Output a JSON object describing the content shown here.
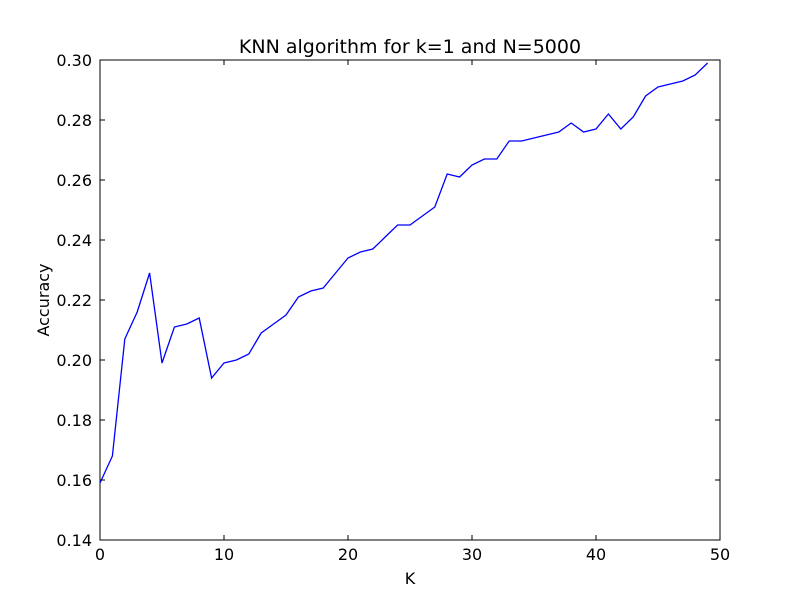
{
  "chart_data": {
    "type": "line",
    "title": "KNN algorithm for k=1 and N=5000",
    "xlabel": "K",
    "ylabel": "Accuracy",
    "xlim": [
      0,
      50
    ],
    "ylim": [
      0.14,
      0.3
    ],
    "xticks": [
      "0",
      "10",
      "20",
      "30",
      "40",
      "50"
    ],
    "yticks": [
      "0.14",
      "0.16",
      "0.18",
      "0.20",
      "0.22",
      "0.24",
      "0.26",
      "0.28",
      "0.30"
    ],
    "grid": false,
    "line_color": "#0000ff",
    "series": [
      {
        "x": [
          0,
          1,
          2,
          3,
          4,
          5,
          6,
          7,
          8,
          9,
          10,
          11,
          12,
          13,
          14,
          15,
          16,
          17,
          18,
          19,
          20,
          21,
          22,
          23,
          24,
          25,
          26,
          27,
          28,
          29,
          30,
          31,
          32,
          33,
          34,
          35,
          36,
          37,
          38,
          39,
          40,
          41,
          42,
          43,
          44,
          45,
          46,
          47,
          48,
          49
        ],
        "values": [
          0.159,
          0.168,
          0.207,
          0.216,
          0.229,
          0.199,
          0.211,
          0.212,
          0.214,
          0.194,
          0.199,
          0.2,
          0.202,
          0.209,
          0.212,
          0.215,
          0.221,
          0.223,
          0.224,
          0.229,
          0.234,
          0.236,
          0.237,
          0.241,
          0.245,
          0.245,
          0.248,
          0.251,
          0.262,
          0.261,
          0.265,
          0.267,
          0.267,
          0.273,
          0.273,
          0.274,
          0.275,
          0.276,
          0.279,
          0.276,
          0.277,
          0.282,
          0.277,
          0.281,
          0.288,
          0.291,
          0.292,
          0.293,
          0.295,
          0.299
        ]
      }
    ]
  }
}
